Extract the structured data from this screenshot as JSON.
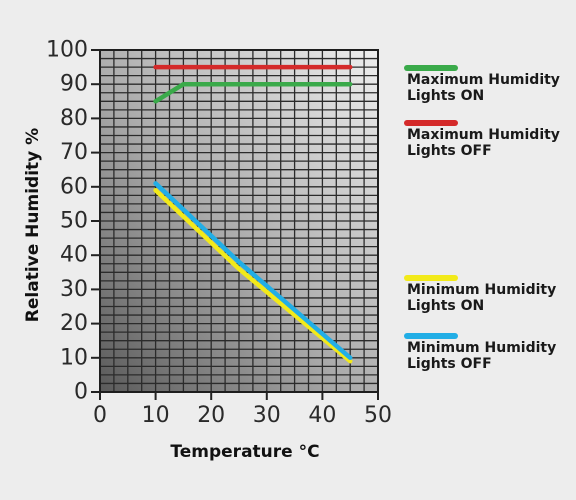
{
  "chart_data": {
    "type": "line",
    "title": "",
    "xlabel": "Temperature °C",
    "ylabel": "Relative Humidity %",
    "xlim": [
      0,
      50
    ],
    "ylim": [
      0,
      100
    ],
    "x_ticks": [
      0,
      10,
      20,
      30,
      40,
      50
    ],
    "y_ticks": [
      0,
      10,
      20,
      30,
      40,
      50,
      60,
      70,
      80,
      90,
      100
    ],
    "grid": true,
    "legend_position": "right",
    "series": [
      {
        "name": "Maximum Humidity Lights ON",
        "label_lines": [
          "Maximum Humidity",
          "Lights ON"
        ],
        "color": "#3aaa4a",
        "points": [
          [
            10,
            85
          ],
          [
            15,
            90
          ],
          [
            45,
            90
          ]
        ]
      },
      {
        "name": "Maximum Humidity Lights OFF",
        "label_lines": [
          "Maximum Humidity",
          "Lights OFF"
        ],
        "color": "#d42a2a",
        "points": [
          [
            10,
            95
          ],
          [
            45,
            95
          ]
        ]
      },
      {
        "name": "Minimum Humidity Lights ON",
        "label_lines": [
          "Minimum Humidity",
          "Lights ON"
        ],
        "color": "#f2ea1a",
        "points": [
          [
            10,
            59
          ],
          [
            25,
            36
          ],
          [
            45,
            9
          ]
        ]
      },
      {
        "name": "Minimum Humidity Lights OFF",
        "label_lines": [
          "Minimum Humidity",
          "Lights OFF"
        ],
        "color": "#22aee6",
        "points": [
          [
            10,
            61
          ],
          [
            25,
            38
          ],
          [
            45,
            10
          ]
        ]
      }
    ]
  }
}
